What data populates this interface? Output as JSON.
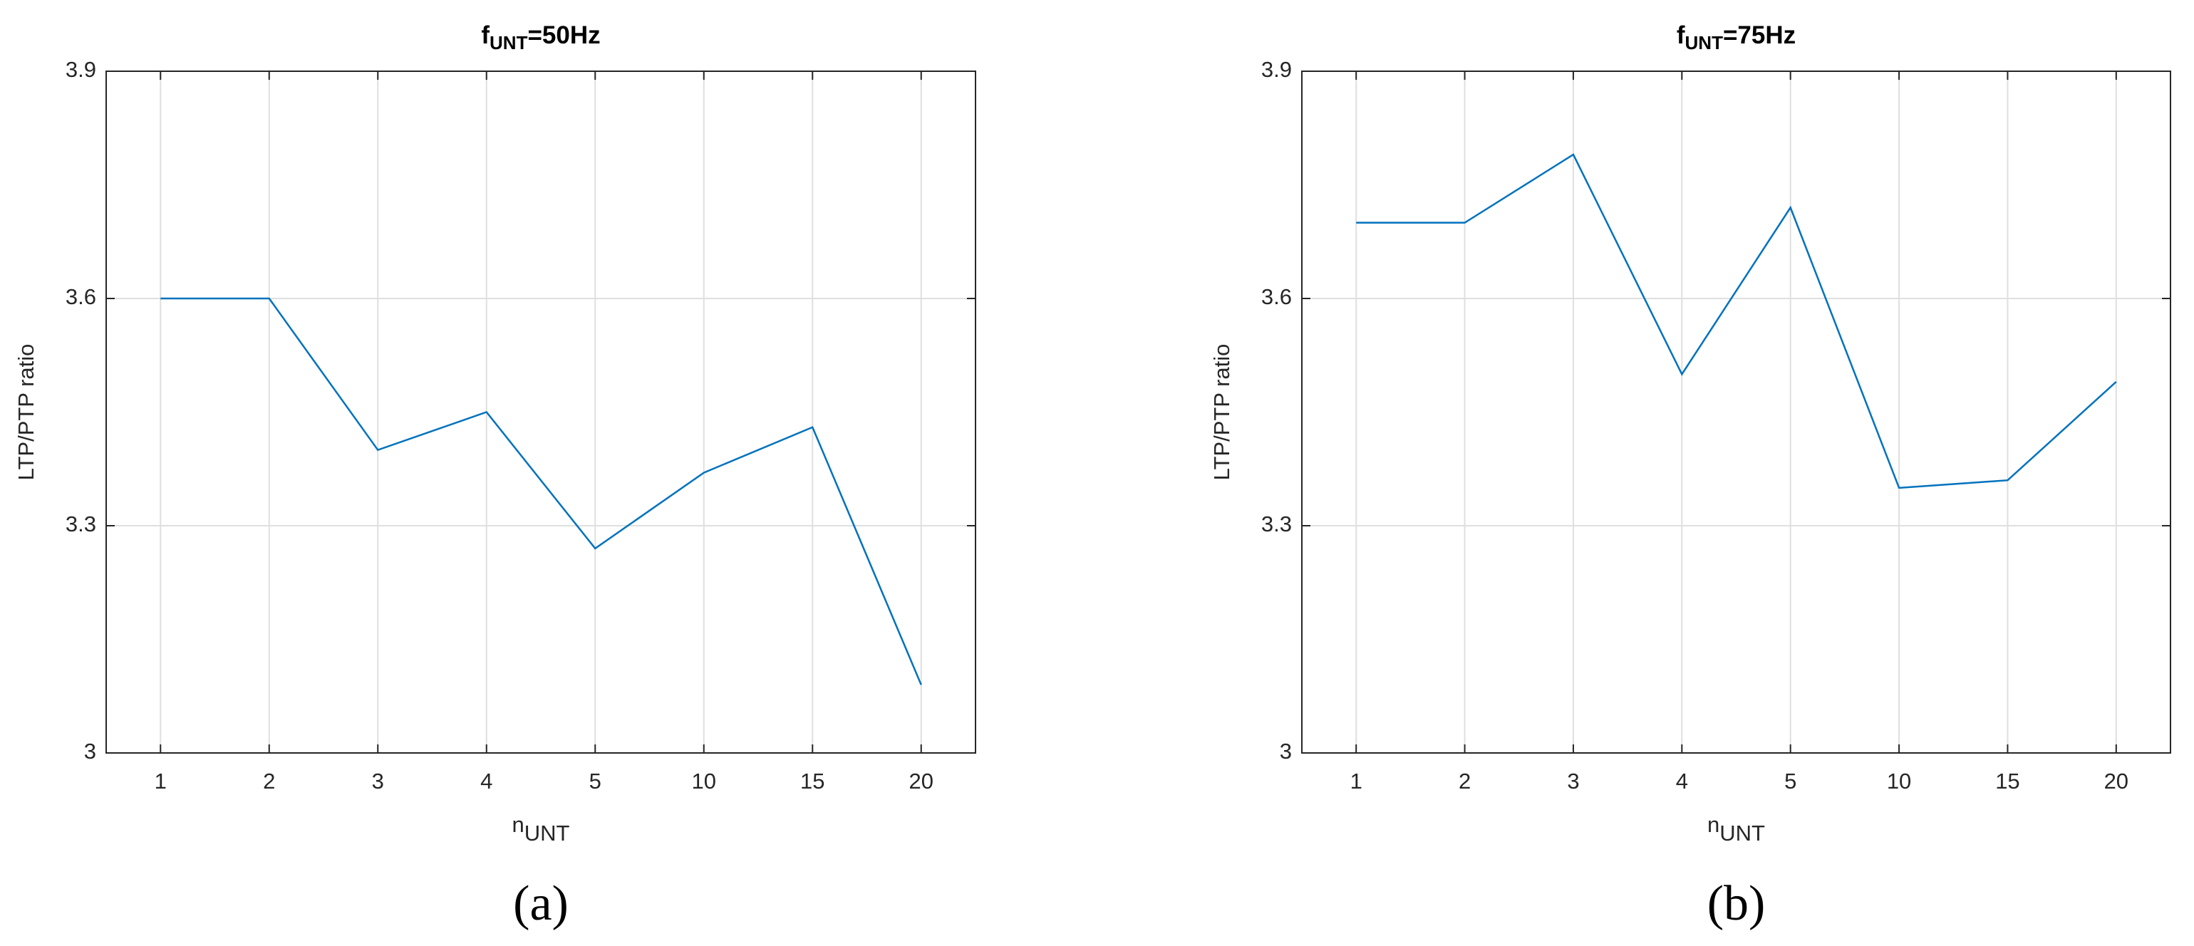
{
  "chart_data": [
    {
      "type": "line",
      "title": [
        "f",
        "UNT",
        "=50Hz"
      ],
      "xlabel": [
        "n",
        "UNT"
      ],
      "ylabel": "LTP/PTP ratio",
      "caption": "(a)",
      "categories": [
        "1",
        "2",
        "3",
        "4",
        "5",
        "10",
        "15",
        "20"
      ],
      "values": [
        3.6,
        3.6,
        3.4,
        3.45,
        3.27,
        3.37,
        3.43,
        3.09
      ],
      "color": "#0072bd",
      "ylim": [
        3,
        3.9
      ],
      "yticks": [
        3,
        3.3,
        3.6,
        3.9
      ],
      "grid": true
    },
    {
      "type": "line",
      "title": [
        "f",
        "UNT",
        "=75Hz"
      ],
      "xlabel": [
        "n",
        "UNT"
      ],
      "ylabel": "LTP/PTP ratio",
      "caption": "(b)",
      "categories": [
        "1",
        "2",
        "3",
        "4",
        "5",
        "10",
        "15",
        "20"
      ],
      "values": [
        3.7,
        3.7,
        3.79,
        3.5,
        3.72,
        3.35,
        3.36,
        3.49
      ],
      "color": "#0072bd",
      "ylim": [
        3,
        3.9
      ],
      "yticks": [
        3,
        3.3,
        3.6,
        3.9
      ],
      "grid": true
    }
  ]
}
